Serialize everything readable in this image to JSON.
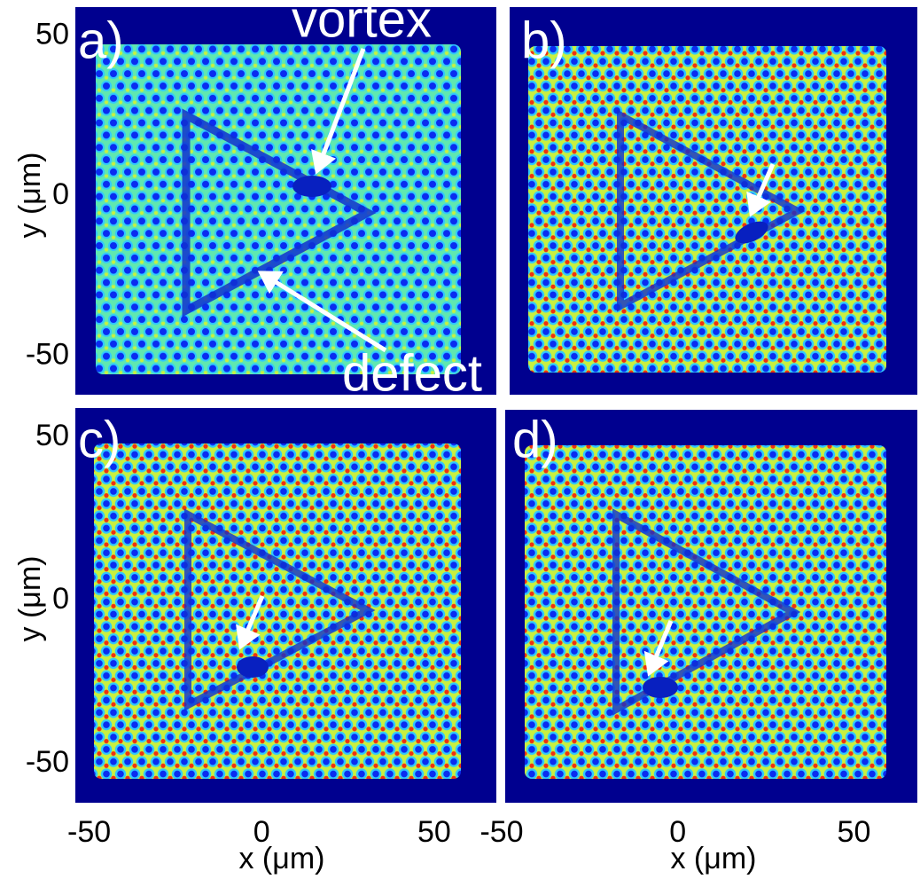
{
  "panels": [
    {
      "label": "a)",
      "xlim": [
        -54,
        68
      ],
      "ylim": [
        -62,
        59
      ]
    },
    {
      "label": "b)",
      "xlim": [
        -49,
        68
      ],
      "ylim": [
        -62,
        59
      ]
    },
    {
      "label": "c)",
      "xlim": [
        -54,
        68
      ],
      "ylim": [
        -62,
        59
      ]
    },
    {
      "label": "d)",
      "xlim": [
        -49,
        68
      ],
      "ylim": [
        -62,
        59
      ]
    }
  ],
  "annotations": {
    "vortex": "vortex",
    "defect": "defect"
  },
  "x_axis": {
    "label": "x (μm)",
    "ticks": [
      -50,
      0,
      50
    ]
  },
  "y_axis": {
    "label": "y (μm)",
    "ticks": [
      -50,
      0,
      50
    ]
  }
}
